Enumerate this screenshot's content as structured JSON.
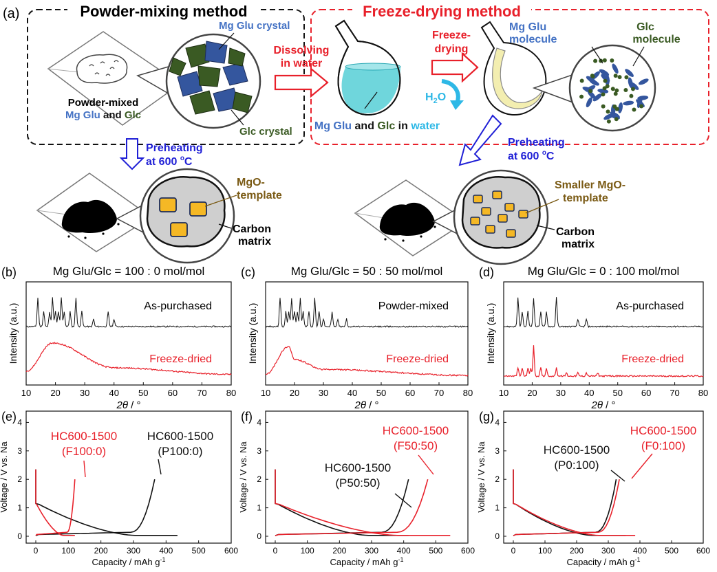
{
  "panel_a": {
    "label": "(a)",
    "pm_title": "Powder-mixing method",
    "fd_title": "Freeze-drying method",
    "mgglu_crystal": "Mg Glu crystal",
    "glc_crystal": "Glc crystal",
    "powder_mixed": "Powder-mixed",
    "pm_mg": "Mg Glu",
    "pm_and": " and ",
    "pm_glc": "Glc",
    "dissolving_1": "Dissolving",
    "dissolving_2": "in water",
    "solution_mg": "Mg Glu",
    "solution_and": " and ",
    "solution_glc": "Glc",
    "solution_in": " in ",
    "solution_water": "water",
    "freeze_1": "Freeze-",
    "freeze_2": "drying",
    "h2o": "H",
    "h2o_sub": "2",
    "h2o_o": "O",
    "mgglu_mol_1": "Mg Glu",
    "mgglu_mol_2": "molecule",
    "glc_mol_1": "Glc",
    "glc_mol_2": "molecule",
    "preheat_1": "Preheating",
    "preheat_2": "at 600 ",
    "preheat_deg": "o",
    "preheat_C": "C",
    "mgo_1": "MgO-",
    "mgo_2": "template",
    "smgo_1": "Smaller MgO-",
    "smgo_2": "template",
    "carbon_1": "Carbon",
    "carbon_2": "matrix",
    "colors": {
      "blue": "#4472c4",
      "green": "#3a5a23",
      "red": "#e8202a",
      "navy": "#1f1fd6",
      "gold": "#7a5a14",
      "cyan": "#2eb8e6"
    }
  },
  "xrd": {
    "ylabel": "Intensity (a.u.)",
    "xlabel_theta": "2θ",
    "xlabel_unit": " / °",
    "ticks": [
      "10",
      "20",
      "30",
      "40",
      "50",
      "60",
      "70",
      "80"
    ],
    "panels": [
      {
        "label": "(b)",
        "title": "Mg Glu/Glc = 100 : 0 mol/mol",
        "top": "As-purchased",
        "bottom": "Freeze-dried"
      },
      {
        "label": "(c)",
        "title": "Mg Glu/Glc = 50 : 50 mol/mol",
        "top": "Powder-mixed",
        "bottom": "Freeze-dried"
      },
      {
        "label": "(d)",
        "title": "Mg Glu/Glc = 0 : 100 mol/mol",
        "top": "As-purchased",
        "bottom": "Freeze-dried"
      }
    ]
  },
  "gcd": {
    "ylabel": "Voltage / V vs. Na",
    "xlabel": "Capacity / mAh g",
    "xlabel_sup": "-1",
    "xticks": [
      "0",
      "100",
      "200",
      "300",
      "400",
      "500",
      "600"
    ],
    "yticks": [
      "0",
      "1",
      "2",
      "3",
      "4"
    ],
    "panels": [
      {
        "label": "(e)",
        "red_1": "HC600-1500",
        "red_2": "(F100:0)",
        "black_1": "HC600-1500",
        "black_2": "(P100:0)"
      },
      {
        "label": "(f)",
        "red_1": "HC600-1500",
        "red_2": "(F50:50)",
        "black_1": "HC600-1500",
        "black_2": "(P50:50)"
      },
      {
        "label": "(g)",
        "red_1": "HC600-1500",
        "red_2": "(F0:100)",
        "black_1": "HC600-1500",
        "black_2": "(P0:100)"
      }
    ]
  },
  "chart_data": [
    {
      "type": "line",
      "title": "Mg Glu/Glc = 100 : 0 mol/mol",
      "xlabel": "2θ / °",
      "ylabel": "Intensity (a.u.)",
      "xlim": [
        10,
        80
      ],
      "series": [
        {
          "name": "As-purchased",
          "peaks": [
            14,
            16,
            18,
            19,
            20,
            21,
            22,
            23,
            25,
            27,
            29,
            33,
            38,
            40
          ]
        },
        {
          "name": "Freeze-dried",
          "broad_max_2theta": 19,
          "x": [
            10,
            19,
            40,
            80
          ],
          "y": [
            0.15,
            1.0,
            0.25,
            0.05
          ]
        }
      ]
    },
    {
      "type": "line",
      "title": "Mg Glu/Glc = 50 : 50 mol/mol",
      "xlabel": "2θ / °",
      "ylabel": "Intensity (a.u.)",
      "xlim": [
        10,
        80
      ],
      "series": [
        {
          "name": "Powder-mixed",
          "peaks": [
            15,
            17,
            18,
            19,
            20,
            21,
            22,
            23,
            25,
            27,
            28.5,
            30,
            33,
            35,
            38
          ]
        },
        {
          "name": "Freeze-dried",
          "broad_max_2theta": 18,
          "x": [
            10,
            18,
            20,
            30,
            80
          ],
          "y": [
            0.05,
            0.9,
            0.5,
            0.2,
            0.02
          ]
        }
      ]
    },
    {
      "type": "line",
      "title": "Mg Glu/Glc = 0 : 100 mol/mol",
      "xlabel": "2θ / °",
      "ylabel": "Intensity (a.u.)",
      "xlim": [
        10,
        80
      ],
      "series": [
        {
          "name": "As-purchased",
          "peaks": [
            15,
            16.5,
            18.5,
            20.5,
            23,
            25,
            28.5,
            36,
            39
          ]
        },
        {
          "name": "Freeze-dried",
          "peaks": [
            15,
            16.5,
            18.5,
            19.5,
            20.5,
            23,
            25,
            28.5,
            32,
            36,
            39,
            43
          ]
        }
      ]
    },
    {
      "type": "line",
      "xlabel": "Capacity / mAh g-1",
      "ylabel": "Voltage / V vs. Na",
      "xlim": [
        0,
        600
      ],
      "ylim": [
        0,
        4.3
      ],
      "series": [
        {
          "name": "HC600-1500 (F100:0)",
          "discharge_capacity": 120,
          "charge_capacity": 120
        },
        {
          "name": "HC600-1500 (P100:0)",
          "discharge_capacity": 435,
          "charge_capacity": 365
        }
      ]
    },
    {
      "type": "line",
      "xlabel": "Capacity / mAh g-1",
      "ylabel": "Voltage / V vs. Na",
      "xlim": [
        0,
        600
      ],
      "ylim": [
        0,
        4.3
      ],
      "series": [
        {
          "name": "HC600-1500 (F50:50)",
          "discharge_capacity": 545,
          "charge_capacity": 475
        },
        {
          "name": "HC600-1500 (P50:50)",
          "discharge_capacity": 415,
          "charge_capacity": 415
        }
      ]
    },
    {
      "type": "line",
      "xlabel": "Capacity / mAh g-1",
      "ylabel": "Voltage / V vs. Na",
      "xlim": [
        0,
        600
      ],
      "ylim": [
        0,
        4.3
      ],
      "series": [
        {
          "name": "HC600-1500 (F0:100)",
          "discharge_capacity": 385,
          "charge_capacity": 335
        },
        {
          "name": "HC600-1500 (P0:100)",
          "discharge_capacity": 355,
          "charge_capacity": 325
        }
      ]
    }
  ]
}
